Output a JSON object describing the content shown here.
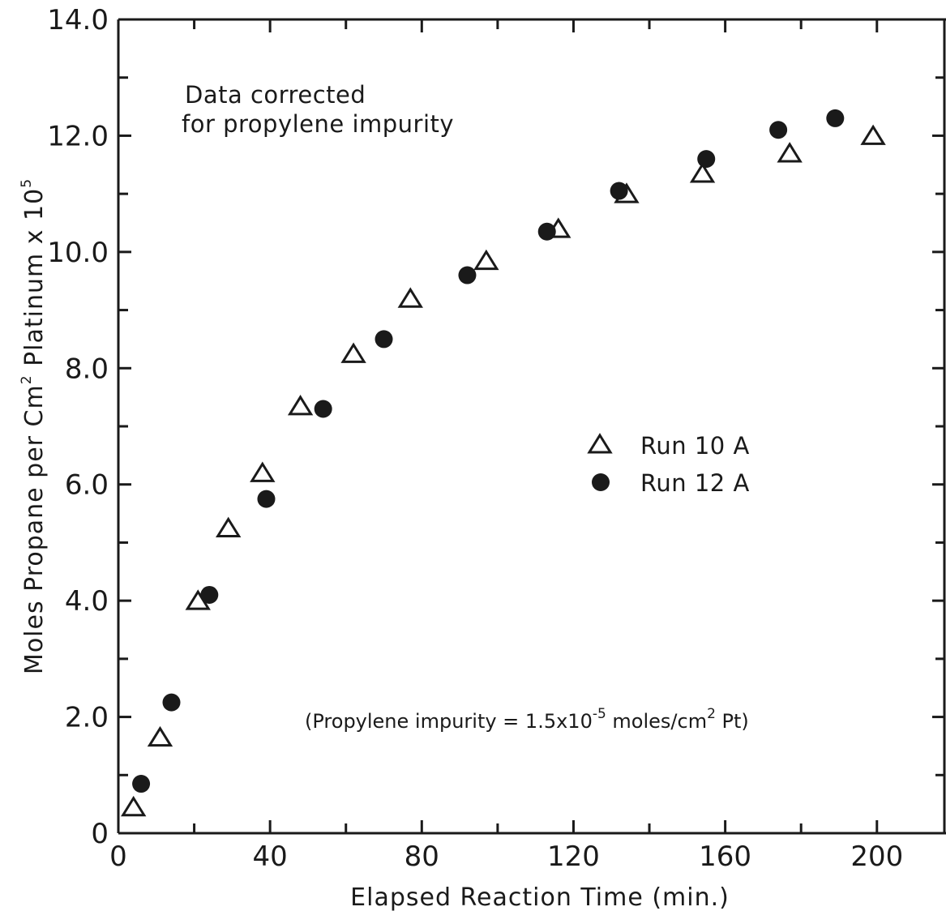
{
  "chart_data": {
    "type": "scatter",
    "xlabel": "Elapsed Reaction Time (min.)",
    "ylabel": {
      "main": "Moles Propane per Cm",
      "sup1": "2",
      "tail": " Platinum x 10",
      "sup2": "5"
    },
    "xlim": [
      0,
      218
    ],
    "ylim": [
      0,
      14.0
    ],
    "x_ticks": [
      0,
      40,
      80,
      120,
      160,
      200
    ],
    "x_tick_labels": [
      "0",
      "40",
      "80",
      "120",
      "160",
      "200"
    ],
    "y_ticks": [
      0,
      2,
      4,
      6,
      8,
      10,
      12,
      14
    ],
    "y_tick_labels": [
      "0",
      "2.0",
      "4.0",
      "6.0",
      "8.0",
      "10.0",
      "12.0",
      "14.0"
    ],
    "grid": false,
    "legend_position": "center-right",
    "annotations": {
      "correction_line1": "Data corrected",
      "correction_line2": "for propylene impurity",
      "impurity_main": "(Propylene impurity = 1.5x10",
      "impurity_exp": "-5",
      "impurity_mid": " moles/cm",
      "impurity_sup": "2",
      "impurity_end": " Pt)"
    },
    "series": [
      {
        "name": "Run 10 A",
        "marker": "open-triangle",
        "x": [
          4,
          11,
          21,
          29,
          38,
          48,
          62,
          77,
          97,
          116,
          134,
          154,
          177,
          199
        ],
        "y": [
          0.45,
          1.65,
          4.0,
          5.25,
          6.2,
          7.35,
          8.25,
          9.2,
          9.85,
          10.4,
          11.0,
          11.35,
          11.7,
          12.0
        ]
      },
      {
        "name": "Run 12 A",
        "marker": "filled-circle",
        "x": [
          6,
          14,
          24,
          39,
          54,
          70,
          92,
          113,
          132,
          155,
          174,
          189
        ],
        "y": [
          0.85,
          2.25,
          4.1,
          5.75,
          7.3,
          8.5,
          9.6,
          10.35,
          11.05,
          11.6,
          12.1,
          12.3
        ]
      }
    ]
  }
}
